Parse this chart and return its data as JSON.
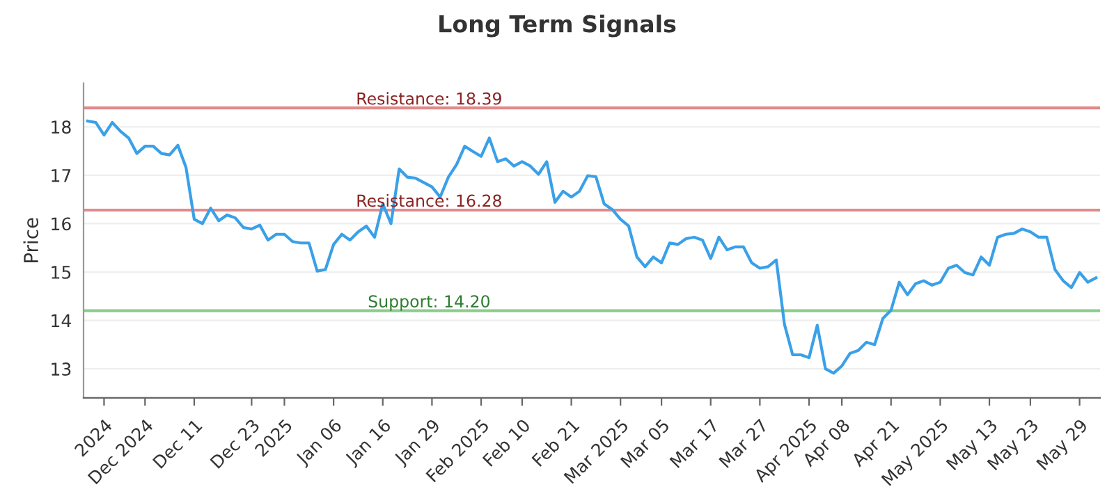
{
  "chart_data": {
    "type": "line",
    "title": "Long Term Signals",
    "ylabel": "Price",
    "categories": [
      null,
      null,
      "2024",
      null,
      null,
      null,
      null,
      "Dec 2024",
      null,
      null,
      null,
      null,
      null,
      "Dec 11",
      null,
      null,
      null,
      null,
      null,
      null,
      "Dec 23",
      null,
      null,
      null,
      "2025",
      null,
      null,
      null,
      null,
      null,
      "Jan 06",
      null,
      null,
      null,
      null,
      null,
      "Jan 16",
      null,
      null,
      null,
      null,
      null,
      "Jan 29",
      null,
      null,
      null,
      null,
      null,
      "Feb 2025",
      null,
      null,
      null,
      null,
      "Feb 10",
      null,
      null,
      null,
      null,
      null,
      "Feb 21",
      null,
      null,
      null,
      null,
      null,
      "Mar 2025",
      null,
      null,
      null,
      null,
      "Mar 05",
      null,
      null,
      null,
      null,
      null,
      "Mar 17",
      null,
      null,
      null,
      null,
      null,
      "Mar 27",
      null,
      null,
      null,
      null,
      null,
      "Apr 2025",
      null,
      null,
      null,
      "Apr 08",
      null,
      null,
      null,
      null,
      null,
      "Apr 21",
      null,
      null,
      null,
      null,
      null,
      "May 2025",
      null,
      null,
      null,
      null,
      null,
      "May 13",
      null,
      null,
      null,
      null,
      "May 23",
      null,
      null,
      null,
      null,
      null,
      "May 29",
      null,
      null
    ],
    "series": [
      {
        "color": "#3aa0e8",
        "values": [
          18.12,
          18.09,
          17.83,
          18.09,
          17.91,
          17.77,
          17.45,
          17.6,
          17.6,
          17.45,
          17.42,
          17.62,
          17.16,
          16.09,
          16.0,
          16.32,
          16.06,
          16.18,
          16.12,
          15.92,
          15.89,
          15.97,
          15.66,
          15.78,
          15.78,
          15.63,
          15.6,
          15.6,
          15.02,
          15.05,
          15.57,
          15.78,
          15.66,
          15.83,
          15.95,
          15.72,
          16.41,
          16.0,
          17.13,
          16.96,
          16.94,
          16.85,
          16.76,
          16.55,
          16.96,
          17.22,
          17.6,
          17.49,
          17.39,
          17.77,
          17.28,
          17.34,
          17.19,
          17.28,
          17.19,
          17.02,
          17.28,
          16.44,
          16.67,
          16.55,
          16.67,
          16.99,
          16.97,
          16.41,
          16.29,
          16.09,
          15.95,
          15.31,
          15.11,
          15.31,
          15.19,
          15.6,
          15.57,
          15.69,
          15.72,
          15.66,
          15.28,
          15.72,
          15.46,
          15.52,
          15.52,
          15.19,
          15.08,
          15.11,
          15.25,
          13.92,
          13.29,
          13.29,
          13.23,
          13.9,
          13.0,
          12.91,
          13.06,
          13.32,
          13.38,
          13.55,
          13.5,
          14.04,
          14.21,
          14.79,
          14.53,
          14.76,
          14.82,
          14.73,
          14.79,
          15.08,
          15.14,
          14.99,
          14.94,
          15.31,
          15.14,
          15.72,
          15.78,
          15.8,
          15.89,
          15.83,
          15.72,
          15.72,
          15.05,
          14.82,
          14.68,
          14.99,
          14.79,
          14.88
        ]
      }
    ],
    "ylim": [
      12.4,
      18.9
    ],
    "yticks": [
      13,
      14,
      15,
      16,
      17,
      18
    ],
    "grid": "y",
    "marker": "none",
    "line_style": "solid",
    "ref_lines": [
      {
        "axis": "y",
        "value": 18.39,
        "label": "Resistance: 18.39",
        "color": "#e08a8a"
      },
      {
        "axis": "y",
        "value": 16.28,
        "label": "Resistance: 16.28",
        "color": "#e08a8a"
      },
      {
        "axis": "y",
        "value": 14.2,
        "label": "Support: 14.20",
        "color": "#8ccc8c"
      }
    ]
  }
}
